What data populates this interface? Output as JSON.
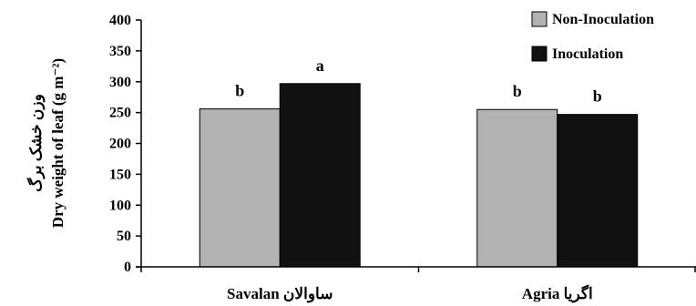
{
  "chart_data": {
    "type": "bar",
    "ylabel_lines": [
      "وزن خشک برگ",
      "Dry weight of leaf (g m⁻²)"
    ],
    "categories": [
      "Savalan ساوالان",
      "Agria اگریا"
    ],
    "ylim": [
      0,
      400
    ],
    "yticks": [
      0,
      50,
      100,
      150,
      200,
      250,
      300,
      350,
      400
    ],
    "grid": false,
    "legend_position": "top-right",
    "series": [
      {
        "name": "Non-Inoculation",
        "color": "#b2b2b2",
        "values": [
          256,
          255
        ],
        "labels": [
          "b",
          "b"
        ]
      },
      {
        "name": "Inoculation",
        "color": "#111111",
        "values": [
          297,
          247
        ],
        "labels": [
          "a",
          "b"
        ]
      }
    ]
  }
}
